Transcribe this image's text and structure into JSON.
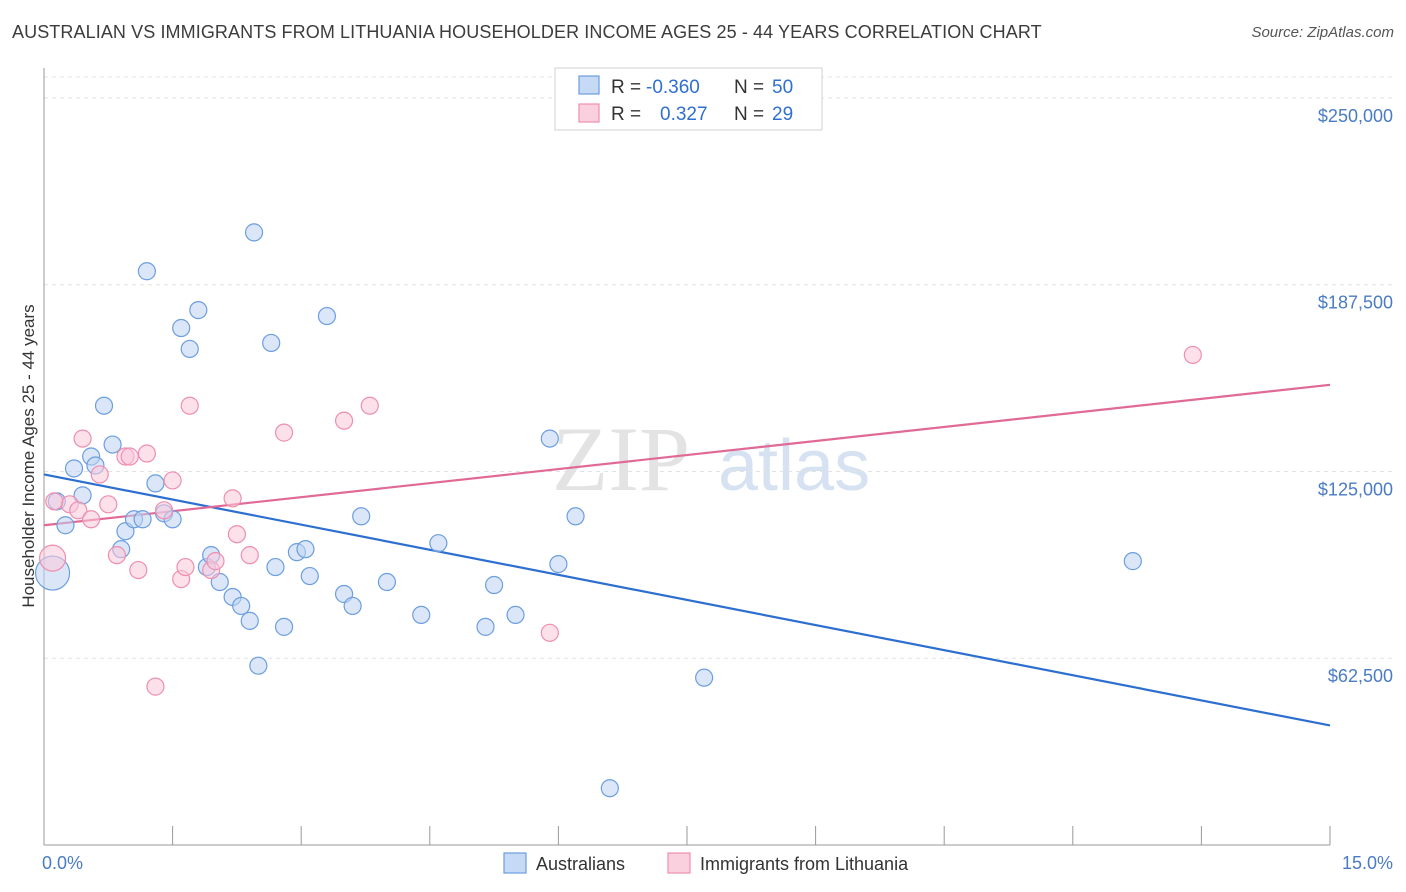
{
  "title": "AUSTRALIAN VS IMMIGRANTS FROM LITHUANIA HOUSEHOLDER INCOME AGES 25 - 44 YEARS CORRELATION CHART",
  "source": "Source: ZipAtlas.com",
  "watermark": {
    "zip": "ZIP",
    "atlas": "atlas"
  },
  "legend": {
    "rows": [
      {
        "r_label": "R =",
        "r_value": "-0.360",
        "n_label": "N =",
        "n_value": "50"
      },
      {
        "r_label": "R =",
        "r_value": "0.327",
        "n_label": "N =",
        "n_value": "29"
      }
    ]
  },
  "bottom_legend": [
    "Australians",
    "Immigrants from Lithuania"
  ],
  "chart_data": {
    "type": "scatter",
    "title": "AUSTRALIAN VS IMMIGRANTS FROM LITHUANIA HOUSEHOLDER INCOME AGES 25 - 44 YEARS CORRELATION CHART",
    "xlabel": "",
    "ylabel": "Householder Income Ages 25 - 44 years",
    "xlim": [
      0,
      15
    ],
    "ylim": [
      0,
      257000
    ],
    "x_tick_labels": [
      "0.0%",
      "15.0%"
    ],
    "y_ticks": [
      62500,
      125000,
      187500,
      250000
    ],
    "y_tick_labels": [
      "$62,500",
      "$125,000",
      "$187,500",
      "$250,000"
    ],
    "grid": true,
    "colors": {
      "australians": "#6c9ee0",
      "lithuania": "#ee8fb0",
      "blue_line": "#2d6fd0",
      "pink_line": "#e06a95"
    },
    "series": [
      {
        "name": "Australians",
        "points": [
          [
            0.1,
            91000
          ],
          [
            0.15,
            115000
          ],
          [
            0.25,
            107000
          ],
          [
            0.35,
            126000
          ],
          [
            0.45,
            117000
          ],
          [
            0.55,
            130000
          ],
          [
            0.6,
            127000
          ],
          [
            0.7,
            147000
          ],
          [
            0.8,
            134000
          ],
          [
            0.9,
            99000
          ],
          [
            0.95,
            105000
          ],
          [
            1.05,
            109000
          ],
          [
            1.15,
            109000
          ],
          [
            1.2,
            192000
          ],
          [
            1.3,
            121000
          ],
          [
            1.4,
            111000
          ],
          [
            1.5,
            109000
          ],
          [
            1.6,
            173000
          ],
          [
            1.7,
            166000
          ],
          [
            1.8,
            179000
          ],
          [
            1.9,
            93000
          ],
          [
            1.95,
            97000
          ],
          [
            2.05,
            88000
          ],
          [
            2.2,
            83000
          ],
          [
            2.3,
            80000
          ],
          [
            2.4,
            75000
          ],
          [
            2.5,
            60000
          ],
          [
            2.45,
            205000
          ],
          [
            2.65,
            168000
          ],
          [
            2.7,
            93000
          ],
          [
            2.8,
            73000
          ],
          [
            2.95,
            98000
          ],
          [
            3.05,
            99000
          ],
          [
            3.1,
            90000
          ],
          [
            3.3,
            177000
          ],
          [
            3.5,
            84000
          ],
          [
            3.6,
            80000
          ],
          [
            3.7,
            110000
          ],
          [
            4.0,
            88000
          ],
          [
            4.4,
            77000
          ],
          [
            4.6,
            101000
          ],
          [
            5.15,
            73000
          ],
          [
            5.25,
            87000
          ],
          [
            5.5,
            77000
          ],
          [
            5.9,
            136000
          ],
          [
            6.0,
            94000
          ],
          [
            6.2,
            110000
          ],
          [
            6.6,
            19000
          ],
          [
            7.7,
            56000
          ],
          [
            12.7,
            95000
          ]
        ]
      },
      {
        "name": "Immigrants from Lithuania",
        "points": [
          [
            0.1,
            96000
          ],
          [
            0.3,
            114000
          ],
          [
            0.4,
            112000
          ],
          [
            0.45,
            136000
          ],
          [
            0.55,
            109000
          ],
          [
            0.65,
            124000
          ],
          [
            0.75,
            114000
          ],
          [
            0.85,
            97000
          ],
          [
            0.95,
            130000
          ],
          [
            1.0,
            130000
          ],
          [
            1.1,
            92000
          ],
          [
            1.2,
            131000
          ],
          [
            1.3,
            53000
          ],
          [
            1.4,
            112000
          ],
          [
            1.5,
            122000
          ],
          [
            1.6,
            89000
          ],
          [
            1.65,
            93000
          ],
          [
            1.7,
            147000
          ],
          [
            1.95,
            92000
          ],
          [
            2.0,
            95000
          ],
          [
            2.2,
            116000
          ],
          [
            2.25,
            104000
          ],
          [
            2.4,
            97000
          ],
          [
            2.8,
            138000
          ],
          [
            3.5,
            142000
          ],
          [
            3.8,
            147000
          ],
          [
            5.9,
            71000
          ],
          [
            13.4,
            164000
          ],
          [
            0.12,
            115000
          ]
        ]
      }
    ],
    "trend_lines": [
      {
        "series": "Australians",
        "x": [
          0,
          15
        ],
        "y": [
          124000,
          40000
        ]
      },
      {
        "series": "Immigrants from Lithuania",
        "x": [
          0,
          15
        ],
        "y": [
          107000,
          154000
        ]
      }
    ]
  }
}
